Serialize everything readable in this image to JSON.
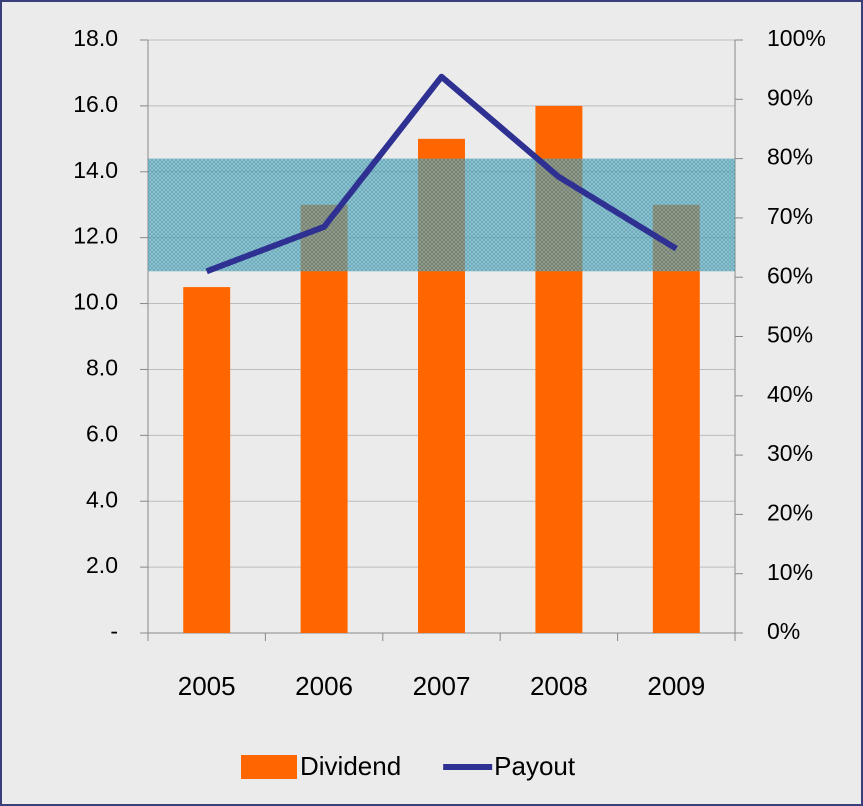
{
  "chart_data": {
    "type": "bar",
    "categories": [
      "2005",
      "2006",
      "2007",
      "2008",
      "2009"
    ],
    "series": [
      {
        "name": "Dividend",
        "type": "bar",
        "color": "#ff6600",
        "values": [
          10.5,
          13.0,
          15.0,
          16.0,
          13.0
        ]
      },
      {
        "name": "Payout",
        "type": "line",
        "axis": "y2",
        "color": "#2e3192",
        "values": [
          61,
          68.5,
          93.8,
          76.9,
          64.8
        ]
      }
    ],
    "band": {
      "axis": "y2",
      "range": [
        61,
        80
      ],
      "color": "#3a9fb5"
    },
    "ylim": [
      0,
      18
    ],
    "yticks": [
      {
        "value": 0,
        "label": "-"
      },
      {
        "value": 2,
        "label": "2.0"
      },
      {
        "value": 4,
        "label": "4.0"
      },
      {
        "value": 6,
        "label": "6.0"
      },
      {
        "value": 8,
        "label": "8.0"
      },
      {
        "value": 10,
        "label": "10.0"
      },
      {
        "value": 12,
        "label": "12.0"
      },
      {
        "value": 14,
        "label": "14.0"
      },
      {
        "value": 16,
        "label": "16.0"
      },
      {
        "value": 18,
        "label": "18.0"
      }
    ],
    "y2lim": [
      0,
      100
    ],
    "y2ticks": [
      {
        "value": 0,
        "label": "0%"
      },
      {
        "value": 10,
        "label": "10%"
      },
      {
        "value": 20,
        "label": "20%"
      },
      {
        "value": 30,
        "label": "30%"
      },
      {
        "value": 40,
        "label": "40%"
      },
      {
        "value": 50,
        "label": "50%"
      },
      {
        "value": 60,
        "label": "60%"
      },
      {
        "value": 70,
        "label": "70%"
      },
      {
        "value": 80,
        "label": "80%"
      },
      {
        "value": 90,
        "label": "90%"
      },
      {
        "value": 100,
        "label": "100%"
      }
    ],
    "grid": true,
    "legend": "bottom"
  }
}
